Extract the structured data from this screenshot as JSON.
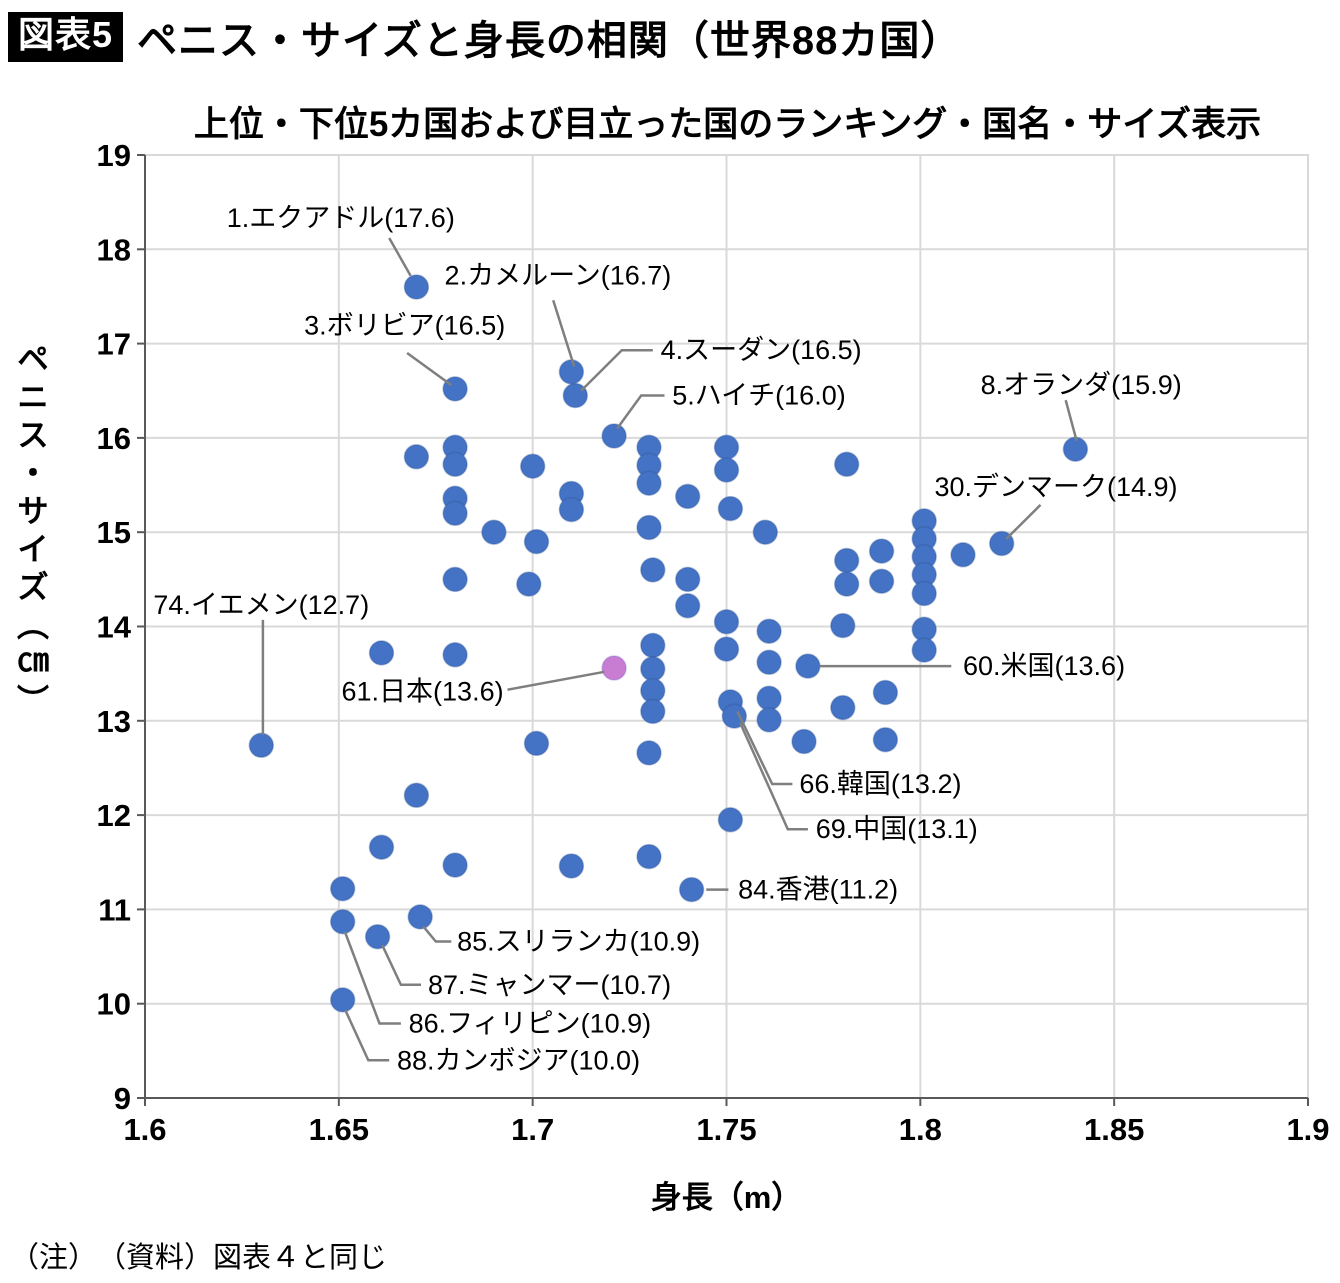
{
  "header": {
    "tag": "図表5",
    "title": "ペニス・サイズと身長の相関（世界88カ国）"
  },
  "subtitle": "上位・下位5カ国および目立った国のランキング・国名・サイズ表示",
  "note": "（注）　（資料）図表４と同じ",
  "chart_data": {
    "type": "scatter",
    "title": "ペニス・サイズと身長の相関（世界88カ国）",
    "subtitle": "上位・下位5カ国および目立った国のランキング・国名・サイズ表示",
    "xlabel": "身長（m）",
    "ylabel": "ペニス・サイズ（㎝）",
    "xlim": [
      1.6,
      1.9
    ],
    "ylim": [
      9,
      19
    ],
    "xticks": [
      "1.6",
      "1.65",
      "1.7",
      "1.75",
      "1.8",
      "1.85",
      "1.9"
    ],
    "yticks": [
      "9",
      "10",
      "11",
      "12",
      "13",
      "14",
      "15",
      "16",
      "17",
      "18",
      "19"
    ],
    "grid": true,
    "dot_color": "#4472C4",
    "dot_edge_color": "#2F5597",
    "highlight_color": "#C87DD2",
    "highlight_edge_color": "#7B68C8",
    "grid_color": "#D9D9D9",
    "axis_color": "#595959",
    "callout_color": "#7F7F7F",
    "points": [
      {
        "x": 1.67,
        "y": 17.6,
        "rank": 1,
        "name": "エクアドル"
      },
      {
        "x": 1.71,
        "y": 16.7,
        "rank": 2,
        "name": "カメルーン"
      },
      {
        "x": 1.68,
        "y": 16.52,
        "rank": 3,
        "name": "ボリビア"
      },
      {
        "x": 1.711,
        "y": 16.45,
        "rank": 4,
        "name": "スーダン"
      },
      {
        "x": 1.721,
        "y": 16.02,
        "rank": 5,
        "name": "ハイチ"
      },
      {
        "x": 1.84,
        "y": 15.88,
        "rank": 8,
        "name": "オランダ"
      },
      {
        "x": 1.821,
        "y": 14.88,
        "rank": 30,
        "name": "デンマーク"
      },
      {
        "x": 1.771,
        "y": 13.58,
        "rank": 60,
        "name": "米国"
      },
      {
        "x": 1.721,
        "y": 13.56,
        "rank": 61,
        "name": "日本",
        "highlight": true
      },
      {
        "x": 1.751,
        "y": 13.2,
        "rank": 66,
        "name": "韓国"
      },
      {
        "x": 1.752,
        "y": 13.05,
        "rank": 69,
        "name": "中国"
      },
      {
        "x": 1.63,
        "y": 12.74,
        "rank": 74,
        "name": "イエメン"
      },
      {
        "x": 1.741,
        "y": 11.21,
        "rank": 84,
        "name": "香港"
      },
      {
        "x": 1.671,
        "y": 10.92,
        "rank": 85,
        "name": "スリランカ"
      },
      {
        "x": 1.651,
        "y": 10.87,
        "rank": 86,
        "name": "フィリピン"
      },
      {
        "x": 1.66,
        "y": 10.71,
        "rank": 87,
        "name": "ミャンマー"
      },
      {
        "x": 1.651,
        "y": 10.04,
        "rank": 88,
        "name": "カンボジア"
      },
      {
        "x": 1.651,
        "y": 11.22
      },
      {
        "x": 1.661,
        "y": 13.72
      },
      {
        "x": 1.661,
        "y": 11.66
      },
      {
        "x": 1.67,
        "y": 15.8
      },
      {
        "x": 1.67,
        "y": 12.21
      },
      {
        "x": 1.68,
        "y": 15.9
      },
      {
        "x": 1.68,
        "y": 15.72
      },
      {
        "x": 1.68,
        "y": 15.36
      },
      {
        "x": 1.68,
        "y": 15.2
      },
      {
        "x": 1.68,
        "y": 14.5
      },
      {
        "x": 1.68,
        "y": 13.7
      },
      {
        "x": 1.68,
        "y": 11.47
      },
      {
        "x": 1.69,
        "y": 15.0
      },
      {
        "x": 1.7,
        "y": 15.7
      },
      {
        "x": 1.701,
        "y": 14.9
      },
      {
        "x": 1.699,
        "y": 14.45
      },
      {
        "x": 1.701,
        "y": 12.76
      },
      {
        "x": 1.71,
        "y": 15.41
      },
      {
        "x": 1.71,
        "y": 15.24
      },
      {
        "x": 1.71,
        "y": 11.46
      },
      {
        "x": 1.73,
        "y": 15.9
      },
      {
        "x": 1.73,
        "y": 15.71
      },
      {
        "x": 1.73,
        "y": 15.52
      },
      {
        "x": 1.73,
        "y": 15.05
      },
      {
        "x": 1.731,
        "y": 14.6
      },
      {
        "x": 1.731,
        "y": 13.8
      },
      {
        "x": 1.731,
        "y": 13.55
      },
      {
        "x": 1.731,
        "y": 13.32
      },
      {
        "x": 1.731,
        "y": 13.1
      },
      {
        "x": 1.73,
        "y": 12.66
      },
      {
        "x": 1.73,
        "y": 11.56
      },
      {
        "x": 1.74,
        "y": 15.38
      },
      {
        "x": 1.74,
        "y": 14.5
      },
      {
        "x": 1.74,
        "y": 14.22
      },
      {
        "x": 1.75,
        "y": 15.9
      },
      {
        "x": 1.75,
        "y": 15.66
      },
      {
        "x": 1.751,
        "y": 15.25
      },
      {
        "x": 1.75,
        "y": 14.05
      },
      {
        "x": 1.75,
        "y": 13.76
      },
      {
        "x": 1.751,
        "y": 11.95
      },
      {
        "x": 1.76,
        "y": 15.0
      },
      {
        "x": 1.761,
        "y": 13.95
      },
      {
        "x": 1.761,
        "y": 13.62
      },
      {
        "x": 1.761,
        "y": 13.24
      },
      {
        "x": 1.761,
        "y": 13.01
      },
      {
        "x": 1.77,
        "y": 12.78
      },
      {
        "x": 1.781,
        "y": 15.72
      },
      {
        "x": 1.781,
        "y": 14.7
      },
      {
        "x": 1.781,
        "y": 14.45
      },
      {
        "x": 1.78,
        "y": 14.01
      },
      {
        "x": 1.78,
        "y": 13.14
      },
      {
        "x": 1.79,
        "y": 14.8
      },
      {
        "x": 1.79,
        "y": 14.48
      },
      {
        "x": 1.791,
        "y": 13.3
      },
      {
        "x": 1.791,
        "y": 12.8
      },
      {
        "x": 1.801,
        "y": 15.12
      },
      {
        "x": 1.801,
        "y": 14.93
      },
      {
        "x": 1.801,
        "y": 14.74
      },
      {
        "x": 1.801,
        "y": 14.55
      },
      {
        "x": 1.801,
        "y": 14.35
      },
      {
        "x": 1.801,
        "y": 13.97
      },
      {
        "x": 1.801,
        "y": 13.75
      },
      {
        "x": 1.811,
        "y": 14.76
      }
    ],
    "annotations": [
      {
        "text": "1.エクアドル(17.6)",
        "anchor": "middle",
        "lx": 1.6505,
        "ly": 18.33,
        "line": [
          [
            1.663,
            18.12
          ],
          [
            1.6685,
            17.72
          ]
        ]
      },
      {
        "text": "2.カメルーン(16.7)",
        "anchor": "middle",
        "lx": 1.7065,
        "ly": 17.72,
        "line": [
          [
            1.7053,
            17.46
          ],
          [
            1.7107,
            16.76
          ]
        ]
      },
      {
        "text": "3.ボリビア(16.5)",
        "anchor": "middle",
        "lx": 1.667,
        "ly": 17.19,
        "line": [
          [
            1.6676,
            16.9
          ],
          [
            1.679,
            16.56
          ]
        ]
      },
      {
        "text": "4.スーダン(16.5)",
        "anchor": "start",
        "lx": 1.733,
        "ly": 16.93,
        "line": [
          [
            1.731,
            16.93
          ],
          [
            1.723,
            16.93
          ],
          [
            1.7125,
            16.5
          ]
        ]
      },
      {
        "text": "5.ハイチ(16.0)",
        "anchor": "start",
        "lx": 1.736,
        "ly": 16.45,
        "line": [
          [
            1.734,
            16.45
          ],
          [
            1.728,
            16.45
          ],
          [
            1.7218,
            16.1
          ]
        ]
      },
      {
        "text": "8.オランダ(15.9)",
        "anchor": "middle",
        "lx": 1.8415,
        "ly": 16.56,
        "line": [
          [
            1.8375,
            16.4
          ],
          [
            1.8403,
            15.97
          ]
        ]
      },
      {
        "text": "30.デンマーク(14.9)",
        "anchor": "middle",
        "lx": 1.835,
        "ly": 15.48,
        "line": [
          [
            1.831,
            15.29
          ],
          [
            1.8222,
            14.93
          ]
        ]
      },
      {
        "text": "60.米国(13.6)",
        "anchor": "start",
        "lx": 1.811,
        "ly": 13.58,
        "line": [
          [
            1.808,
            13.58
          ],
          [
            1.774,
            13.58
          ]
        ]
      },
      {
        "text": "61.日本(13.6)",
        "anchor": "end",
        "lx": 1.6925,
        "ly": 13.31,
        "line": [
          [
            1.6935,
            13.33
          ],
          [
            1.7185,
            13.52
          ]
        ]
      },
      {
        "text": "66.韓国(13.2)",
        "anchor": "start",
        "lx": 1.7688,
        "ly": 12.33,
        "line": [
          [
            1.767,
            12.33
          ],
          [
            1.7618,
            12.33
          ],
          [
            1.7528,
            13.1
          ]
        ]
      },
      {
        "text": "69.中国(13.1)",
        "anchor": "start",
        "lx": 1.773,
        "ly": 11.85,
        "line": [
          [
            1.771,
            11.85
          ],
          [
            1.7658,
            11.85
          ],
          [
            1.7535,
            12.98
          ]
        ]
      },
      {
        "text": "74.イエメン(12.7)",
        "anchor": "middle",
        "lx": 1.63,
        "ly": 14.23,
        "line": [
          [
            1.6304,
            14.07
          ],
          [
            1.6304,
            12.85
          ]
        ]
      },
      {
        "text": "84.香港(11.2)",
        "anchor": "start",
        "lx": 1.753,
        "ly": 11.21,
        "line": [
          [
            1.7505,
            11.21
          ],
          [
            1.7448,
            11.21
          ]
        ]
      },
      {
        "text": "85.スリランカ(10.9)",
        "anchor": "start",
        "lx": 1.6805,
        "ly": 10.66,
        "line": [
          [
            1.679,
            10.66
          ],
          [
            1.675,
            10.66
          ],
          [
            1.6718,
            10.82
          ]
        ]
      },
      {
        "text": "87.ミャンマー(10.7)",
        "anchor": "start",
        "lx": 1.673,
        "ly": 10.2,
        "line": [
          [
            1.6712,
            10.2
          ],
          [
            1.666,
            10.2
          ],
          [
            1.6612,
            10.62
          ]
        ]
      },
      {
        "text": "86.フィリピン(10.9)",
        "anchor": "start",
        "lx": 1.668,
        "ly": 9.79,
        "line": [
          [
            1.666,
            9.79
          ],
          [
            1.6605,
            9.79
          ],
          [
            1.6516,
            10.76
          ]
        ]
      },
      {
        "text": "88.カンボジア(10.0)",
        "anchor": "start",
        "lx": 1.665,
        "ly": 9.4,
        "line": [
          [
            1.663,
            9.4
          ],
          [
            1.6576,
            9.4
          ],
          [
            1.6517,
            9.93
          ]
        ]
      }
    ]
  }
}
